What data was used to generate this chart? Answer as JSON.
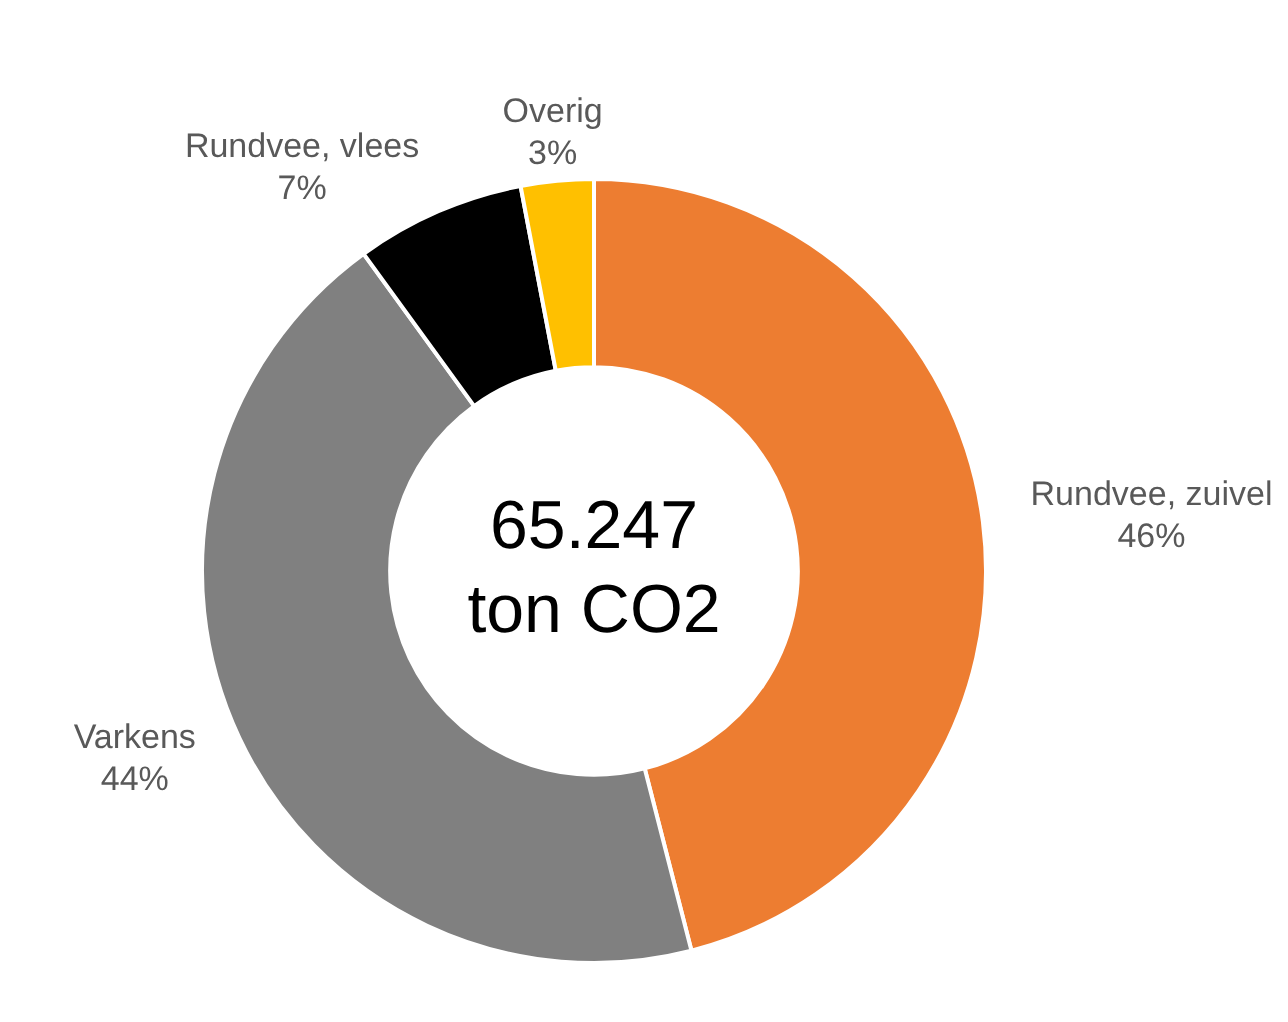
{
  "chart_data": {
    "type": "donut",
    "categories": [
      "Rundvee, zuivel",
      "Varkens",
      "Rundvee, vlees",
      "Overig"
    ],
    "values": [
      46,
      44,
      7,
      3
    ],
    "colors": [
      "#ed7d31",
      "#808080",
      "#000000",
      "#ffc000"
    ],
    "value_labels": [
      "46%",
      "44%",
      "7%",
      "3%"
    ],
    "annotations": [
      "65.247",
      "ton CO2"
    ],
    "legend": false
  }
}
